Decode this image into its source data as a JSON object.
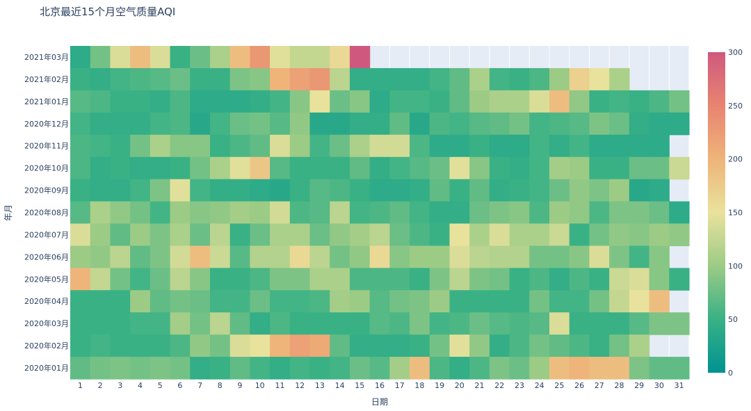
{
  "chart_data": {
    "type": "heatmap",
    "title": "北京最近15个月空气质量AQI",
    "xlabel": "日期",
    "ylabel": "年月",
    "x": [
      "1",
      "2",
      "3",
      "4",
      "5",
      "6",
      "7",
      "8",
      "9",
      "10",
      "11",
      "12",
      "13",
      "14",
      "15",
      "16",
      "17",
      "18",
      "19",
      "20",
      "21",
      "22",
      "23",
      "24",
      "25",
      "26",
      "27",
      "28",
      "29",
      "30",
      "31"
    ],
    "y": [
      "2021年03月",
      "2021年02月",
      "2021年01月",
      "2020年12月",
      "2020年11月",
      "2020年10月",
      "2020年09月",
      "2020年08月",
      "2020年07月",
      "2020年06月",
      "2020年05月",
      "2020年04月",
      "2020年03月",
      "2020年02月",
      "2020年01月"
    ],
    "z": [
      [
        40,
        80,
        140,
        190,
        140,
        50,
        75,
        110,
        190,
        230,
        145,
        125,
        125,
        160,
        300,
        null,
        null,
        null,
        null,
        null,
        null,
        null,
        null,
        null,
        null,
        null,
        null,
        null,
        null,
        null,
        null
      ],
      [
        50,
        45,
        55,
        60,
        65,
        75,
        50,
        50,
        85,
        90,
        200,
        220,
        230,
        120,
        45,
        45,
        45,
        45,
        55,
        70,
        110,
        55,
        50,
        60,
        100,
        170,
        150,
        110,
        null,
        null,
        null
      ],
      [
        65,
        60,
        50,
        50,
        45,
        60,
        40,
        40,
        40,
        45,
        55,
        90,
        150,
        75,
        90,
        40,
        55,
        55,
        50,
        70,
        100,
        110,
        110,
        140,
        190,
        95,
        50,
        55,
        50,
        60,
        80
      ],
      [
        55,
        45,
        45,
        45,
        55,
        60,
        35,
        55,
        75,
        80,
        65,
        95,
        35,
        35,
        45,
        45,
        70,
        35,
        60,
        55,
        65,
        70,
        80,
        55,
        60,
        65,
        85,
        75,
        45,
        40,
        40
      ],
      [
        60,
        55,
        50,
        80,
        110,
        90,
        90,
        50,
        60,
        70,
        140,
        100,
        55,
        75,
        110,
        135,
        135,
        60,
        40,
        40,
        50,
        40,
        40,
        55,
        45,
        55,
        40,
        40,
        40,
        40,
        null
      ],
      [
        60,
        45,
        50,
        45,
        45,
        50,
        80,
        110,
        145,
        180,
        65,
        50,
        50,
        50,
        70,
        45,
        55,
        65,
        75,
        145,
        90,
        50,
        45,
        55,
        105,
        100,
        50,
        50,
        75,
        75,
        130
      ],
      [
        50,
        45,
        45,
        55,
        85,
        145,
        55,
        45,
        45,
        40,
        35,
        50,
        65,
        60,
        50,
        40,
        40,
        45,
        70,
        50,
        70,
        45,
        50,
        55,
        75,
        95,
        85,
        100,
        35,
        40,
        null
      ],
      [
        65,
        110,
        95,
        80,
        55,
        100,
        90,
        95,
        105,
        100,
        135,
        60,
        65,
        120,
        55,
        60,
        70,
        55,
        45,
        45,
        75,
        85,
        90,
        60,
        100,
        95,
        60,
        85,
        85,
        75,
        40
      ],
      [
        140,
        100,
        70,
        100,
        85,
        110,
        75,
        120,
        50,
        75,
        110,
        110,
        75,
        95,
        105,
        120,
        75,
        60,
        50,
        150,
        110,
        140,
        110,
        110,
        130,
        50,
        80,
        95,
        90,
        100,
        95
      ],
      [
        100,
        95,
        120,
        70,
        85,
        135,
        190,
        130,
        65,
        115,
        115,
        160,
        120,
        80,
        95,
        160,
        90,
        100,
        100,
        140,
        120,
        115,
        115,
        80,
        80,
        90,
        140,
        85,
        55,
        90,
        null
      ],
      [
        200,
        125,
        80,
        55,
        75,
        120,
        90,
        50,
        50,
        60,
        85,
        85,
        110,
        110,
        60,
        60,
        60,
        50,
        85,
        120,
        85,
        80,
        50,
        60,
        45,
        60,
        50,
        130,
        140,
        90,
        50
      ],
      [
        50,
        50,
        50,
        100,
        70,
        80,
        75,
        55,
        55,
        75,
        55,
        55,
        60,
        105,
        100,
        65,
        80,
        85,
        100,
        50,
        50,
        50,
        50,
        80,
        55,
        55,
        80,
        125,
        150,
        190,
        null
      ],
      [
        50,
        50,
        50,
        55,
        55,
        105,
        80,
        120,
        70,
        45,
        60,
        50,
        50,
        50,
        50,
        65,
        60,
        85,
        55,
        60,
        75,
        65,
        60,
        65,
        140,
        50,
        50,
        50,
        65,
        85,
        85
      ],
      [
        50,
        55,
        50,
        50,
        50,
        60,
        95,
        80,
        140,
        150,
        200,
        220,
        210,
        70,
        45,
        45,
        45,
        50,
        80,
        145,
        95,
        45,
        60,
        80,
        70,
        60,
        50,
        80,
        110,
        null,
        null
      ],
      [
        70,
        80,
        85,
        80,
        85,
        80,
        45,
        50,
        70,
        55,
        45,
        55,
        50,
        55,
        75,
        65,
        105,
        190,
        60,
        45,
        60,
        85,
        75,
        100,
        190,
        200,
        190,
        190,
        85,
        70,
        70
      ]
    ],
    "zmin": 0,
    "zmax": 300,
    "colorbar_ticks": [
      "0",
      "50",
      "100",
      "150",
      "200",
      "250",
      "300"
    ],
    "colorscale": [
      "#009392",
      "#39b185",
      "#9ccb86",
      "#e9e29c",
      "#eeb479",
      "#e88471",
      "#cf597e"
    ],
    "plot_background": "#e5ecf6"
  }
}
